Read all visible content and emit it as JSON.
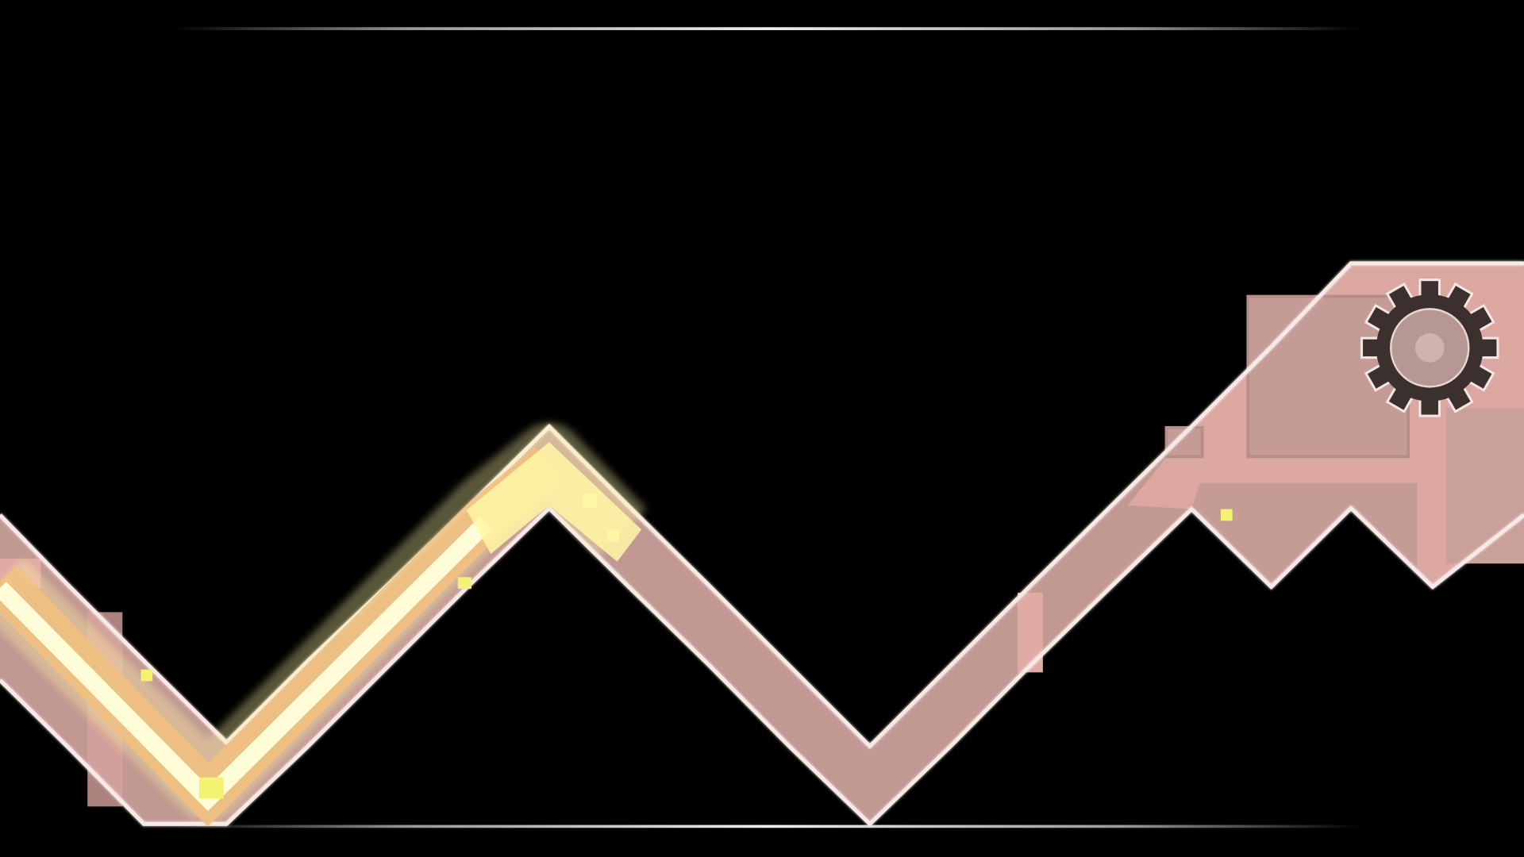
{
  "scene": {
    "description_kind": "wave-corridor",
    "colors": {
      "background": "#000000",
      "corridor_fill": "#c19892",
      "corridor_light": "#e2ada6",
      "corridor_dark": "#a88682",
      "corridor_edge": "#f7e9e6",
      "trail_yellow": "#fff7a6",
      "trail_cream": "#fffdd8",
      "trail_orange": "#f1c081",
      "particle": "#f4f272",
      "gear_dark": "#3c302f",
      "gear_inner": "#b79794",
      "gear_center": "#d0b2ae",
      "frame_line": "#e0e0e0"
    },
    "icons": {
      "gear": "gear-icon"
    }
  }
}
